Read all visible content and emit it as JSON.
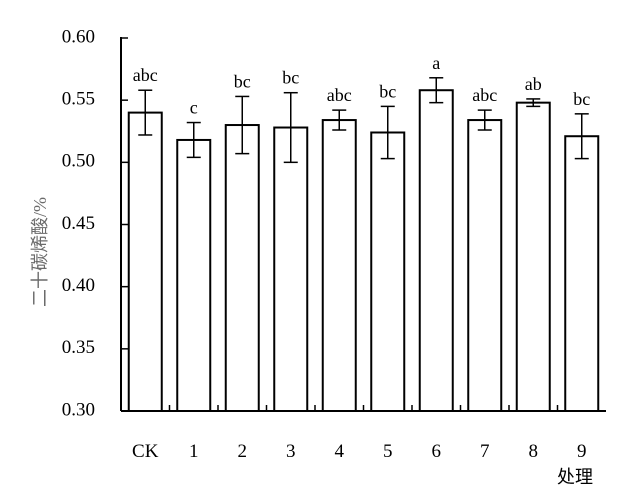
{
  "chart_data": {
    "type": "bar",
    "xlabel": "处理",
    "ylabel": "二十碳烯酸/%",
    "ylim": [
      0.3,
      0.6
    ],
    "yticks": [
      "0.30",
      "0.35",
      "0.40",
      "0.45",
      "0.50",
      "0.55",
      "0.60"
    ],
    "categories": [
      "CK",
      "1",
      "2",
      "3",
      "4",
      "5",
      "6",
      "7",
      "8",
      "9"
    ],
    "values": [
      0.54,
      0.518,
      0.53,
      0.528,
      0.534,
      0.524,
      0.558,
      0.534,
      0.548,
      0.521
    ],
    "errors": [
      0.018,
      0.014,
      0.023,
      0.028,
      0.008,
      0.021,
      0.01,
      0.008,
      0.003,
      0.018
    ],
    "significance": [
      "abc",
      "c",
      "bc",
      "bc",
      "abc",
      "bc",
      "a",
      "abc",
      "ab",
      "bc"
    ],
    "grid": false,
    "bar_color": "#ffffff",
    "line_color": "#000000"
  }
}
